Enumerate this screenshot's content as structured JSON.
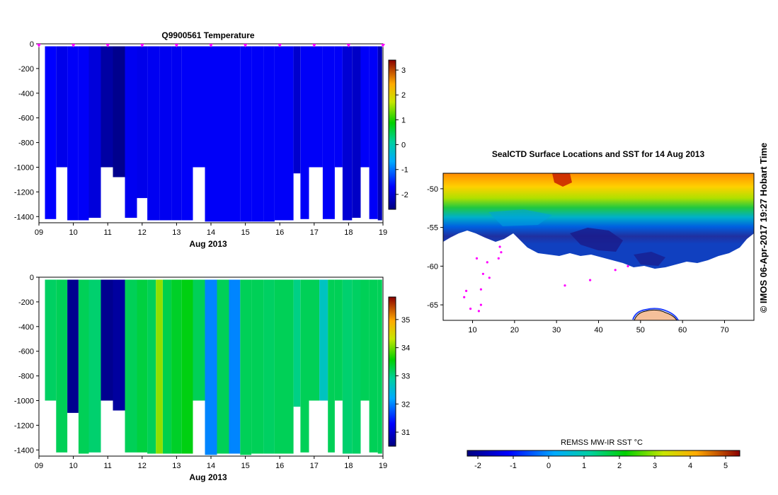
{
  "chart_data": [
    {
      "type": "heatmap",
      "id": "temperature",
      "title": "Q9900561  Temperature",
      "xlabel": "Aug 2013",
      "ylabel": "",
      "x_ticks": [
        "09",
        "10",
        "11",
        "12",
        "13",
        "14",
        "15",
        "16",
        "17",
        "18",
        "19"
      ],
      "y_ticks": [
        "0",
        "-200",
        "-400",
        "-600",
        "-800",
        "-1000",
        "-1200",
        "-1400"
      ],
      "xlim": [
        9,
        19
      ],
      "ylim": [
        -1450,
        0
      ],
      "colorbar": {
        "min": -2.6,
        "max": 3.4,
        "ticks": [
          "3",
          "2",
          "1",
          "0",
          "-1",
          "-2"
        ]
      },
      "profile_markers_day": [
        9.0,
        10.0,
        11.0,
        12.0,
        13.0,
        14.0,
        15.0,
        16.0,
        17.0,
        18.0,
        19.0
      ],
      "profiles": [
        {
          "day": 9.35,
          "bottom": -1420,
          "value": -1.7
        },
        {
          "day": 9.65,
          "bottom": -1000,
          "value": -1.85
        },
        {
          "day": 10.0,
          "bottom": -1430,
          "value": -1.75
        },
        {
          "day": 10.3,
          "bottom": -1430,
          "value": -1.75
        },
        {
          "day": 10.6,
          "bottom": -1410,
          "value": -1.95
        },
        {
          "day": 11.0,
          "bottom": -1000,
          "value": -2.35
        },
        {
          "day": 11.3,
          "bottom": -1080,
          "value": -2.5
        },
        {
          "day": 11.7,
          "bottom": -1410,
          "value": -1.8
        },
        {
          "day": 12.0,
          "bottom": -1250,
          "value": -1.85
        },
        {
          "day": 12.3,
          "bottom": -1430,
          "value": -1.8
        },
        {
          "day": 12.7,
          "bottom": -1430,
          "value": -1.8
        },
        {
          "day": 13.0,
          "bottom": -1430,
          "value": -1.8
        },
        {
          "day": 13.3,
          "bottom": -1430,
          "value": -1.75
        },
        {
          "day": 13.65,
          "bottom": -1000,
          "value": -1.75
        },
        {
          "day": 14.0,
          "bottom": -1440,
          "value": -1.75
        },
        {
          "day": 14.35,
          "bottom": -1440,
          "value": -1.75
        },
        {
          "day": 14.7,
          "bottom": -1440,
          "value": -1.75
        },
        {
          "day": 15.0,
          "bottom": -1440,
          "value": -1.75
        },
        {
          "day": 15.35,
          "bottom": -1440,
          "value": -1.75
        },
        {
          "day": 15.7,
          "bottom": -1440,
          "value": -1.75
        },
        {
          "day": 16.0,
          "bottom": -1430,
          "value": -1.75
        },
        {
          "day": 16.3,
          "bottom": -1430,
          "value": -1.75
        },
        {
          "day": 16.5,
          "bottom": -1050,
          "value": -2.05
        },
        {
          "day": 16.7,
          "bottom": -1420,
          "value": -1.75
        },
        {
          "day": 17.0,
          "bottom": -1000,
          "value": -1.75
        },
        {
          "day": 17.5,
          "bottom": -1420,
          "value": -1.75
        },
        {
          "day": 17.7,
          "bottom": -1000,
          "value": -1.75
        },
        {
          "day": 17.95,
          "bottom": -1430,
          "value": -2.0
        },
        {
          "day": 18.25,
          "bottom": -1410,
          "value": -2.1
        },
        {
          "day": 18.45,
          "bottom": -1000,
          "value": -1.75
        },
        {
          "day": 18.75,
          "bottom": -1420,
          "value": -1.75
        },
        {
          "day": 18.95,
          "bottom": -1430,
          "value": -2.2
        }
      ]
    },
    {
      "type": "heatmap",
      "id": "salinity",
      "title": "",
      "xlabel": "Aug 2013",
      "ylabel": "",
      "x_ticks": [
        "09",
        "10",
        "11",
        "12",
        "13",
        "14",
        "15",
        "16",
        "17",
        "18",
        "19"
      ],
      "y_ticks": [
        "0",
        "-200",
        "-400",
        "-600",
        "-800",
        "-1000",
        "-1200",
        "-1400"
      ],
      "xlim": [
        9,
        19
      ],
      "ylim": [
        -1450,
        0
      ],
      "colorbar": {
        "min": 30.5,
        "max": 35.8,
        "ticks": [
          "35",
          "34",
          "33",
          "32",
          "31"
        ]
      },
      "profiles": [
        {
          "day": 9.35,
          "bottom": -1000,
          "value": 33.15
        },
        {
          "day": 9.65,
          "bottom": -1420,
          "value": 33.2
        },
        {
          "day": 10.0,
          "bottom": -1100,
          "value": 30.6
        },
        {
          "day": 10.3,
          "bottom": -1430,
          "value": 33.2
        },
        {
          "day": 10.6,
          "bottom": -1420,
          "value": 33.1
        },
        {
          "day": 11.0,
          "bottom": -1000,
          "value": 30.6
        },
        {
          "day": 11.3,
          "bottom": -1080,
          "value": 30.7
        },
        {
          "day": 11.7,
          "bottom": -1420,
          "value": 33.2
        },
        {
          "day": 12.0,
          "bottom": -1420,
          "value": 33.3
        },
        {
          "day": 12.3,
          "bottom": -1430,
          "value": 33.2
        },
        {
          "day": 12.5,
          "bottom": -1430,
          "value": 34.1
        },
        {
          "day": 12.7,
          "bottom": -1430,
          "value": 33.25
        },
        {
          "day": 13.0,
          "bottom": -1430,
          "value": 33.4
        },
        {
          "day": 13.3,
          "bottom": -1430,
          "value": 33.5
        },
        {
          "day": 13.65,
          "bottom": -1000,
          "value": 33.2
        },
        {
          "day": 14.0,
          "bottom": -1440,
          "value": 32.0
        },
        {
          "day": 14.35,
          "bottom": -1430,
          "value": 33.2
        },
        {
          "day": 14.7,
          "bottom": -1430,
          "value": 32.0
        },
        {
          "day": 15.0,
          "bottom": -1440,
          "value": 33.2
        },
        {
          "day": 15.35,
          "bottom": -1430,
          "value": 33.2
        },
        {
          "day": 15.7,
          "bottom": -1430,
          "value": 33.15
        },
        {
          "day": 16.0,
          "bottom": -1430,
          "value": 33.2
        },
        {
          "day": 16.3,
          "bottom": -1430,
          "value": 33.2
        },
        {
          "day": 16.5,
          "bottom": -1050,
          "value": 33.0
        },
        {
          "day": 16.7,
          "bottom": -1420,
          "value": 33.2
        },
        {
          "day": 17.0,
          "bottom": -1000,
          "value": 33.2
        },
        {
          "day": 17.3,
          "bottom": -1000,
          "value": 32.65
        },
        {
          "day": 17.5,
          "bottom": -1420,
          "value": 33.2
        },
        {
          "day": 17.7,
          "bottom": -1000,
          "value": 33.2
        },
        {
          "day": 17.95,
          "bottom": -1430,
          "value": 33.1
        },
        {
          "day": 18.25,
          "bottom": -1430,
          "value": 33.15
        },
        {
          "day": 18.45,
          "bottom": -1000,
          "value": 33.2
        },
        {
          "day": 18.75,
          "bottom": -1420,
          "value": 33.2
        },
        {
          "day": 18.95,
          "bottom": -1430,
          "value": 33.2
        }
      ]
    },
    {
      "type": "heatmap",
      "id": "sst-map",
      "title": "SealCTD Surface Locations and SST for 14 Aug 2013",
      "xlabel": "",
      "ylabel": "",
      "x_ticks": [
        "10",
        "20",
        "30",
        "40",
        "50",
        "60",
        "70"
      ],
      "y_ticks": [
        "-50",
        "-55",
        "-60",
        "-65"
      ],
      "xlim": [
        3,
        77
      ],
      "ylim": [
        -67,
        -48
      ],
      "colorbar": {
        "label": "REMSS MW-IR SST °C",
        "min": -2.3,
        "max": 5.4,
        "ticks": [
          "-2",
          "-1",
          "0",
          "1",
          "2",
          "3",
          "4",
          "5"
        ]
      },
      "track_points": [
        {
          "lon": 16.5,
          "lat": -57.5
        },
        {
          "lon": 16.8,
          "lat": -58.2
        },
        {
          "lon": 16.2,
          "lat": -59.0
        },
        {
          "lon": 13.5,
          "lat": -59.5
        },
        {
          "lon": 11.0,
          "lat": -59.0
        },
        {
          "lon": 12.5,
          "lat": -61.0
        },
        {
          "lon": 14.0,
          "lat": -61.5
        },
        {
          "lon": 12.0,
          "lat": -63.0
        },
        {
          "lon": 8.5,
          "lat": -63.2
        },
        {
          "lon": 8.0,
          "lat": -64.0
        },
        {
          "lon": 9.5,
          "lat": -65.5
        },
        {
          "lon": 11.5,
          "lat": -65.8
        },
        {
          "lon": 12.0,
          "lat": -65.0
        },
        {
          "lon": 32.0,
          "lat": -62.5
        },
        {
          "lon": 38.0,
          "lat": -61.8
        },
        {
          "lon": 44.0,
          "lat": -60.5
        },
        {
          "lon": 47.0,
          "lat": -60.0
        }
      ]
    }
  ],
  "credit": "© IMOS 06-Apr-2017 19:27 Hobart Time"
}
